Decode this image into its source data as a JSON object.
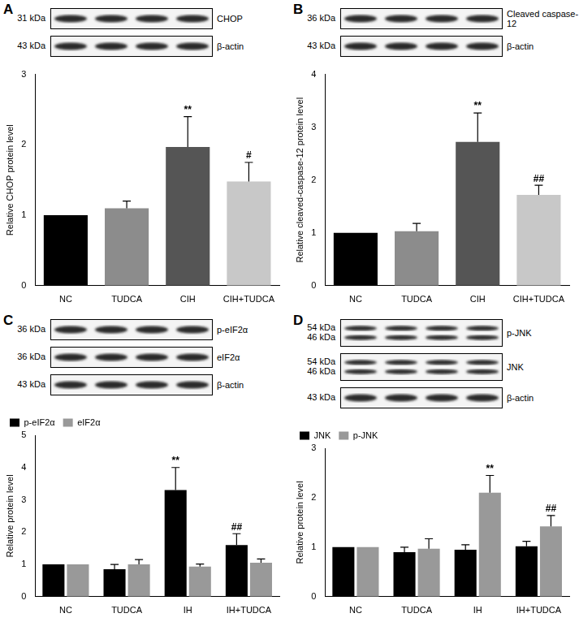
{
  "chart_data": [
    {
      "type": "bar",
      "categories": [
        "NC",
        "TUDCA",
        "CIH",
        "CIH+TUDCA"
      ],
      "values": [
        1,
        1.1,
        1.97,
        1.48
      ],
      "errors": [
        0,
        0.1,
        0.43,
        0.27
      ],
      "marks": [
        null,
        null,
        "**",
        "#"
      ],
      "colors": [
        "#000000",
        "#8c8c8c",
        "#555555",
        "#c8c8c8"
      ],
      "y_label": "Relative CHOP protein level",
      "ylim": [
        0,
        3
      ],
      "yticks": [
        0,
        1,
        2,
        3
      ],
      "grid": false
    },
    {
      "type": "bar",
      "categories": [
        "NC",
        "TUDCA",
        "CIH",
        "CIH+TUDCA"
      ],
      "values": [
        1,
        1.03,
        2.72,
        1.72
      ],
      "errors": [
        0,
        0.15,
        0.55,
        0.18
      ],
      "marks": [
        null,
        null,
        "**",
        "##"
      ],
      "colors": [
        "#000000",
        "#8c8c8c",
        "#555555",
        "#c8c8c8"
      ],
      "y_label": "Relative cleaved-caspase-12 protein level",
      "ylim": [
        0,
        4
      ],
      "yticks": [
        0,
        1,
        2,
        3,
        4
      ],
      "grid": false
    },
    {
      "type": "bar",
      "categories": [
        "NC",
        "TUDCA",
        "IH",
        "IH+TUDCA"
      ],
      "series": [
        {
          "name": "p-eIF2α",
          "color": "#000000",
          "values": [
            1,
            0.85,
            3.3,
            1.6
          ],
          "errors": [
            0,
            0.15,
            0.7,
            0.35
          ],
          "marks": [
            null,
            null,
            "**",
            "##"
          ]
        },
        {
          "name": "eIF2α",
          "color": "#999999",
          "values": [
            1,
            1.0,
            0.93,
            1.05
          ],
          "errors": [
            0,
            0.15,
            0.08,
            0.12
          ],
          "marks": [
            null,
            null,
            null,
            null
          ]
        }
      ],
      "y_label": "Relative protein level",
      "ylim": [
        0,
        5
      ],
      "yticks": [
        0,
        1,
        2,
        3,
        4,
        5
      ],
      "grid": false,
      "legend": "top-left"
    },
    {
      "type": "bar",
      "categories": [
        "NC",
        "TUDCA",
        "IH",
        "IH+TUDCA"
      ],
      "series": [
        {
          "name": "JNK",
          "color": "#000000",
          "values": [
            1,
            0.9,
            0.95,
            1.02
          ],
          "errors": [
            0,
            0.1,
            0.1,
            0.1
          ],
          "marks": [
            null,
            null,
            null,
            null
          ]
        },
        {
          "name": "p-JNK",
          "color": "#999999",
          "values": [
            1,
            0.97,
            2.1,
            1.42
          ],
          "errors": [
            0,
            0.2,
            0.35,
            0.22
          ],
          "marks": [
            null,
            null,
            "**",
            "##"
          ]
        }
      ],
      "y_label": "Relative protein level",
      "ylim": [
        0,
        3
      ],
      "yticks": [
        0,
        1,
        2,
        3
      ],
      "grid": false,
      "legend": "top-left"
    }
  ],
  "blots": [
    {
      "panel": "A",
      "rows": [
        {
          "kda": [
            "31 kDa"
          ],
          "protein": "CHOP"
        },
        {
          "kda": [
            "43 kDa"
          ],
          "protein": "β-actin"
        }
      ]
    },
    {
      "panel": "B",
      "rows": [
        {
          "kda": [
            "36 kDa"
          ],
          "protein": "Cleaved caspase-12"
        },
        {
          "kda": [
            "43 kDa"
          ],
          "protein": "β-actin"
        }
      ]
    },
    {
      "panel": "C",
      "rows": [
        {
          "kda": [
            "36 kDa"
          ],
          "protein": "p-eIF2α"
        },
        {
          "kda": [
            "36 kDa"
          ],
          "protein": "eIF2α"
        },
        {
          "kda": [
            "43 kDa"
          ],
          "protein": "β-actin"
        }
      ]
    },
    {
      "panel": "D",
      "rows": [
        {
          "kda": [
            "54 kDa",
            "46 kDa"
          ],
          "protein": "p-JNK"
        },
        {
          "kda": [
            "54 kDa",
            "46 kDa"
          ],
          "protein": "JNK"
        },
        {
          "kda": [
            "43 kDa"
          ],
          "protein": "β-actin"
        }
      ]
    }
  ]
}
